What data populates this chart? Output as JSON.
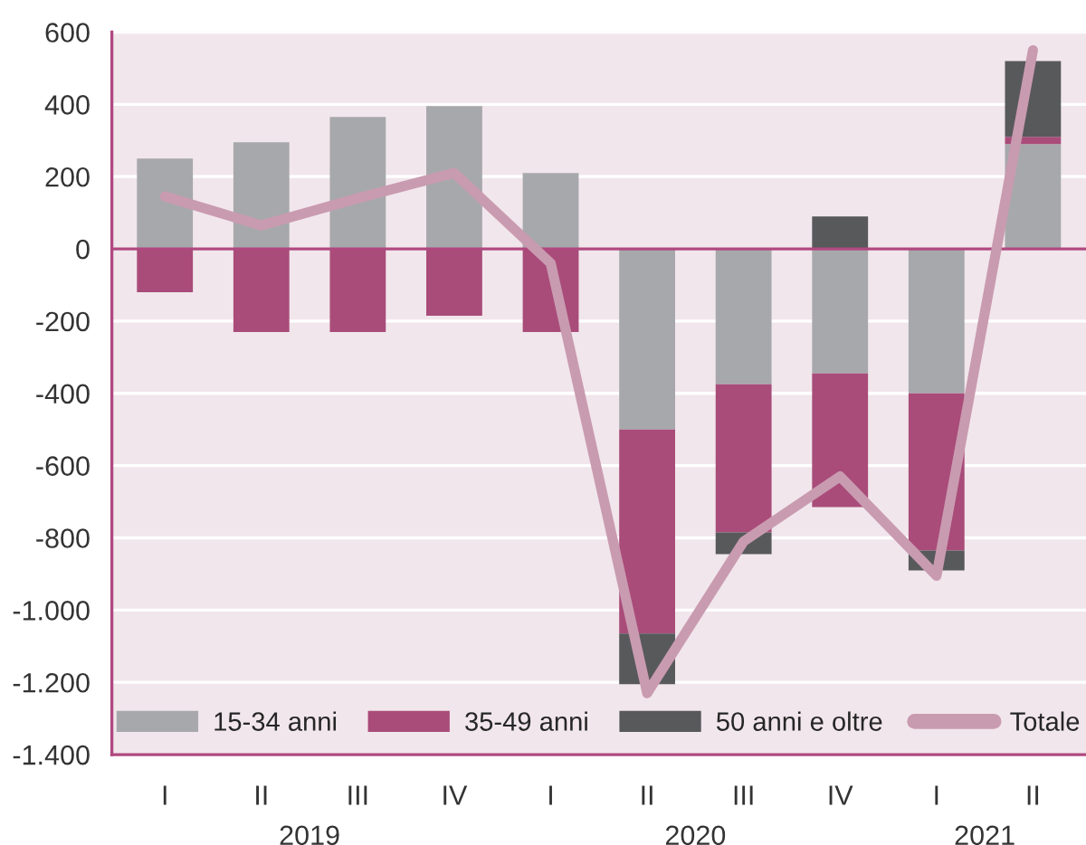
{
  "chart_data": {
    "type": "bar",
    "stacked": true,
    "categories": [
      "I",
      "II",
      "III",
      "IV",
      "I",
      "II",
      "III",
      "IV",
      "I",
      "II"
    ],
    "series": [
      {
        "name": "15-34 anni",
        "color": "#a7a8ab",
        "values": [
          250,
          295,
          365,
          395,
          210,
          -500,
          -375,
          -345,
          -400,
          290
        ]
      },
      {
        "name": "35-49 anni",
        "color": "#a94c7a",
        "values": [
          -120,
          -230,
          -230,
          -185,
          -230,
          -565,
          -410,
          -370,
          -435,
          20
        ]
      },
      {
        "name": "50 anni e oltre",
        "color": "#58595b",
        "values": [
          null,
          null,
          null,
          null,
          null,
          -140,
          -60,
          90,
          -55,
          210
        ]
      },
      {
        "name": "Totale",
        "type": "line",
        "color": "#c99bb0",
        "values": [
          145,
          65,
          140,
          210,
          -40,
          -1230,
          -810,
          -630,
          -905,
          550
        ]
      }
    ],
    "ylim": [
      -1400,
      600
    ],
    "yticks": [
      600,
      400,
      200,
      0,
      -200,
      -400,
      -600,
      -800,
      {
        "value": -1000,
        "label": "-1.000"
      },
      {
        "value": -1200,
        "label": "-1.200"
      },
      {
        "value": -1400,
        "label": "-1.400"
      }
    ],
    "grid": "y",
    "legend": "bottom",
    "ref_lines": [
      {
        "axis": "y",
        "value": 0,
        "color": "#b0497f"
      }
    ],
    "annotations": [
      "2019",
      "2020",
      "2021"
    ]
  }
}
